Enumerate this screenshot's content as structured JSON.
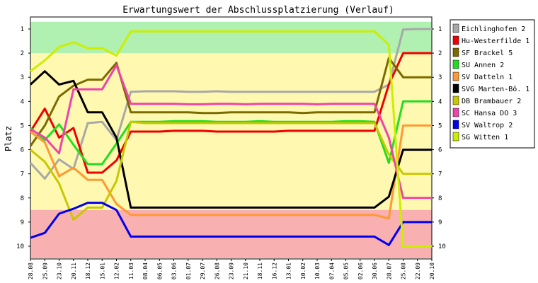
{
  "chart_data": {
    "type": "line",
    "title": "Erwartungswert der Abschlussplatzierung (Verlauf)",
    "ylabel": "Platz",
    "xlabel": "",
    "ylim": [
      1,
      10
    ],
    "y_inverted": true,
    "yticks": [
      "1",
      "2",
      "3",
      "4",
      "5",
      "6",
      "7",
      "8",
      "9",
      "10"
    ],
    "legend_position": "right",
    "bands": [
      {
        "from": 0.7,
        "to": 2,
        "color": "#b0f0b0"
      },
      {
        "from": 2,
        "to": 8.5,
        "color": "#fff8b0"
      },
      {
        "from": 8.5,
        "to": 10.5,
        "color": "#f8b0b0"
      }
    ],
    "categories": [
      "28.08",
      "25.09",
      "23.10",
      "20.11",
      "18.12",
      "15.01",
      "12.02",
      "11.03",
      "08.04",
      "06.05",
      "03.06",
      "01.07",
      "29.07",
      "26.08",
      "23.09",
      "21.10",
      "18.11",
      "16.12",
      "13.01",
      "10.02",
      "10.03",
      "07.04",
      "05.05",
      "02.06",
      "30.06",
      "28.07",
      "25.08",
      "22.09",
      "20.10"
    ],
    "series": [
      {
        "name": "Eichlinghofen 2",
        "color": "#a8a8a8",
        "values": [
          6.55,
          7.2,
          6.4,
          6.8,
          4.9,
          4.85,
          5.6,
          3.6,
          3.58,
          3.58,
          3.58,
          3.6,
          3.6,
          3.58,
          3.6,
          3.6,
          3.6,
          3.6,
          3.6,
          3.6,
          3.6,
          3.6,
          3.6,
          3.6,
          3.6,
          3.3,
          1.02,
          1.0,
          1.0
        ]
      },
      {
        "name": "Hu-Westerfilde 1",
        "color": "#ee0000",
        "values": [
          5.25,
          4.3,
          5.5,
          5.1,
          6.95,
          6.95,
          6.45,
          5.25,
          5.25,
          5.25,
          5.22,
          5.22,
          5.22,
          5.25,
          5.25,
          5.25,
          5.25,
          5.25,
          5.22,
          5.22,
          5.22,
          5.22,
          5.22,
          5.22,
          5.22,
          3.3,
          2.0,
          2.0,
          2.0
        ]
      },
      {
        "name": "SF Brackel 5",
        "color": "#7a6a00",
        "values": [
          5.85,
          5.0,
          3.8,
          3.35,
          3.1,
          3.1,
          2.4,
          4.45,
          4.45,
          4.45,
          4.45,
          4.45,
          4.48,
          4.48,
          4.45,
          4.45,
          4.45,
          4.45,
          4.45,
          4.48,
          4.45,
          4.45,
          4.45,
          4.45,
          4.45,
          2.2,
          3.0,
          3.0,
          3.0
        ]
      },
      {
        "name": "SU Annen 2",
        "color": "#22dd22",
        "values": [
          5.1,
          5.6,
          4.95,
          5.8,
          6.6,
          6.6,
          5.75,
          4.85,
          4.85,
          4.85,
          4.82,
          4.82,
          4.82,
          4.85,
          4.85,
          4.85,
          4.82,
          4.85,
          4.85,
          4.85,
          4.85,
          4.85,
          4.82,
          4.82,
          4.85,
          6.55,
          4.0,
          4.0,
          4.0
        ]
      },
      {
        "name": "SV Datteln 1",
        "color": "#ff9933",
        "values": [
          5.25,
          5.7,
          7.1,
          6.75,
          7.25,
          7.25,
          8.25,
          8.7,
          8.7,
          8.7,
          8.7,
          8.7,
          8.7,
          8.7,
          8.7,
          8.7,
          8.7,
          8.7,
          8.7,
          8.7,
          8.7,
          8.7,
          8.7,
          8.7,
          8.7,
          8.85,
          5.0,
          5.0,
          5.0
        ]
      },
      {
        "name": "SVG Marten-Bö. 1",
        "color": "#000000",
        "values": [
          3.3,
          2.75,
          3.3,
          3.15,
          4.45,
          4.45,
          5.5,
          8.4,
          8.4,
          8.4,
          8.4,
          8.4,
          8.4,
          8.4,
          8.4,
          8.4,
          8.4,
          8.4,
          8.4,
          8.4,
          8.4,
          8.4,
          8.4,
          8.4,
          8.4,
          7.95,
          6.0,
          6.0,
          6.0
        ]
      },
      {
        "name": "DB Brambauer 2",
        "color": "#c8c800",
        "values": [
          6.0,
          6.5,
          7.4,
          8.9,
          8.4,
          8.4,
          7.3,
          4.85,
          4.9,
          4.9,
          4.9,
          4.9,
          4.9,
          4.9,
          4.9,
          4.9,
          4.9,
          4.9,
          4.9,
          4.9,
          4.9,
          4.9,
          4.9,
          4.9,
          4.9,
          6.2,
          7.0,
          7.0,
          7.0
        ]
      },
      {
        "name": "SC Hansa DO 3",
        "color": "#ee44aa",
        "values": [
          5.15,
          5.5,
          6.15,
          3.5,
          3.5,
          3.5,
          2.5,
          4.1,
          4.1,
          4.1,
          4.1,
          4.12,
          4.12,
          4.1,
          4.1,
          4.12,
          4.1,
          4.1,
          4.1,
          4.1,
          4.12,
          4.1,
          4.1,
          4.1,
          4.1,
          5.5,
          8.0,
          8.0,
          8.0
        ]
      },
      {
        "name": "SV Waltrop 2",
        "color": "#0000ee",
        "values": [
          9.65,
          9.45,
          8.65,
          8.45,
          8.2,
          8.2,
          8.5,
          9.6,
          9.6,
          9.6,
          9.6,
          9.6,
          9.6,
          9.6,
          9.6,
          9.6,
          9.6,
          9.6,
          9.6,
          9.6,
          9.6,
          9.6,
          9.6,
          9.6,
          9.6,
          9.95,
          9.0,
          9.0,
          9.0
        ]
      },
      {
        "name": "SG Witten 1",
        "color": "#ccee00",
        "values": [
          2.75,
          2.3,
          1.75,
          1.55,
          1.8,
          1.8,
          2.1,
          1.1,
          1.1,
          1.1,
          1.1,
          1.1,
          1.1,
          1.1,
          1.1,
          1.1,
          1.1,
          1.1,
          1.1,
          1.1,
          1.1,
          1.1,
          1.1,
          1.1,
          1.1,
          1.65,
          10.0,
          10.0,
          10.0
        ]
      }
    ]
  }
}
